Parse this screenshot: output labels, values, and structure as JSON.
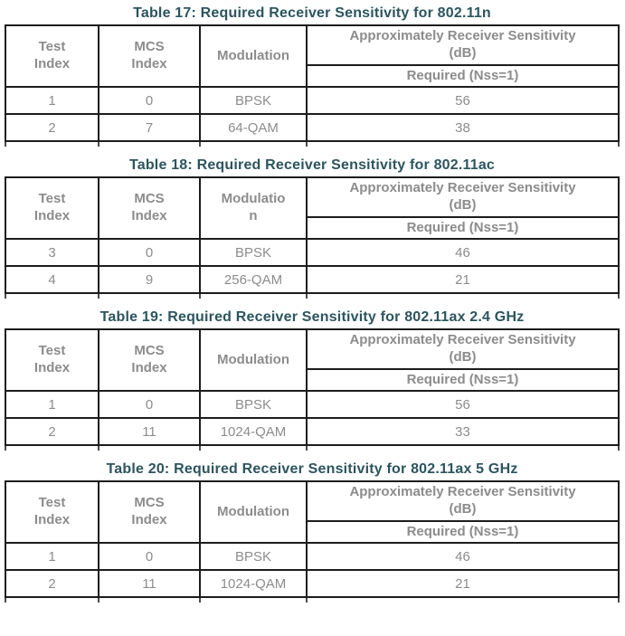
{
  "colors": {
    "title_teal": "#2B5560",
    "table_text_gray": "#8C8C8C",
    "border": "#1c1c1c",
    "background": "#ffffff"
  },
  "tables": [
    {
      "title": "Table 17: Required Receiver Sensitivity for 802.11n",
      "headers": {
        "test_index": "Test\nIndex",
        "mcs_index": "MCS\nIndex",
        "modulation": "Modulation",
        "sensitivity": "Approximately Receiver Sensitivity\n(dB)",
        "required": "Required (Nss=1)"
      },
      "rows": [
        {
          "test_index": "1",
          "mcs_index": "0",
          "modulation": "BPSK",
          "required": "56"
        },
        {
          "test_index": "2",
          "mcs_index": "7",
          "modulation": "64-QAM",
          "required": "38"
        }
      ]
    },
    {
      "title": "Table 18: Required Receiver Sensitivity for 802.11ac",
      "headers": {
        "test_index": "Test\nIndex",
        "mcs_index": "MCS\nIndex",
        "modulation": "Modulatio\nn",
        "sensitivity": "Approximately Receiver Sensitivity\n(dB)",
        "required": "Required (Nss=1)"
      },
      "rows": [
        {
          "test_index": "3",
          "mcs_index": "0",
          "modulation": "BPSK",
          "required": "46"
        },
        {
          "test_index": "4",
          "mcs_index": "9",
          "modulation": "256-QAM",
          "required": "21"
        }
      ]
    },
    {
      "title": "Table 19: Required Receiver Sensitivity for 802.11ax 2.4 GHz",
      "headers": {
        "test_index": "Test\nIndex",
        "mcs_index": "MCS\nIndex",
        "modulation": "Modulation",
        "sensitivity": "Approximately Receiver Sensitivity\n(dB)",
        "required": "Required (Nss=1)"
      },
      "rows": [
        {
          "test_index": "1",
          "mcs_index": "0",
          "modulation": "BPSK",
          "required": "56"
        },
        {
          "test_index": "2",
          "mcs_index": "11",
          "modulation": "1024-QAM",
          "required": "33"
        }
      ]
    },
    {
      "title": "Table 20: Required Receiver Sensitivity for 802.11ax 5 GHz",
      "headers": {
        "test_index": "Test\nIndex",
        "mcs_index": "MCS\nIndex",
        "modulation": "Modulation",
        "sensitivity": "Approximately Receiver Sensitivity\n(dB)",
        "required": "Required (Nss=1)"
      },
      "rows": [
        {
          "test_index": "1",
          "mcs_index": "0",
          "modulation": "BPSK",
          "required": "46"
        },
        {
          "test_index": "2",
          "mcs_index": "11",
          "modulation": "1024-QAM",
          "required": "21"
        }
      ]
    }
  ]
}
